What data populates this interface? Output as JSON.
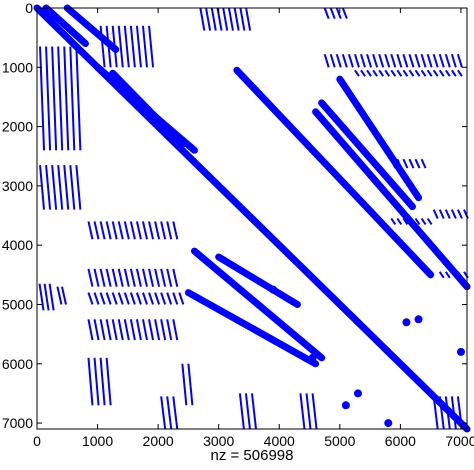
{
  "chart_data": {
    "type": "scatter",
    "subtype": "sparsity-pattern",
    "title": "",
    "xlabel": "nz = 506998",
    "ylabel": "",
    "xlim": [
      0,
      7100
    ],
    "ylim": [
      0,
      7100
    ],
    "y_axis_reversed": true,
    "x_ticks": [
      0,
      1000,
      2000,
      3000,
      4000,
      5000,
      6000,
      7000
    ],
    "y_ticks": [
      0,
      1000,
      2000,
      3000,
      4000,
      5000,
      6000,
      7000
    ],
    "x_tick_labels": [
      "0",
      "1000",
      "2000",
      "3000",
      "4000",
      "5000",
      "6000",
      "7000"
    ],
    "y_tick_labels": [
      "0",
      "1000",
      "2000",
      "3000",
      "4000",
      "5000",
      "6000",
      "7000"
    ],
    "marker_color": "#0000ff",
    "grid": false,
    "nnz": 506998,
    "segments": [
      {
        "x0": 0,
        "y0": 0,
        "x1": 7100,
        "y1": 7100
      },
      {
        "x0": 150,
        "y0": 0,
        "x1": 800,
        "y1": 600
      },
      {
        "x0": 500,
        "y0": 0,
        "x1": 1300,
        "y1": 700
      },
      {
        "x0": 1000,
        "y0": 1000,
        "x1": 2600,
        "y1": 2400
      },
      {
        "x0": 1250,
        "y0": 1100,
        "x1": 2400,
        "y1": 2300
      },
      {
        "x0": 3300,
        "y0": 1050,
        "x1": 6500,
        "y1": 4500
      },
      {
        "x0": 4600,
        "y0": 1750,
        "x1": 7100,
        "y1": 4700
      },
      {
        "x0": 2600,
        "y0": 4100,
        "x1": 4700,
        "y1": 5900
      },
      {
        "x0": 2500,
        "y0": 4800,
        "x1": 4600,
        "y1": 6000
      },
      {
        "x0": 3000,
        "y0": 4200,
        "x1": 4300,
        "y1": 5000
      },
      {
        "x0": 4700,
        "y0": 1600,
        "x1": 6200,
        "y1": 3350
      },
      {
        "x0": 5000,
        "y0": 1200,
        "x1": 6300,
        "y1": 3200
      }
    ],
    "bands": [
      {
        "x0": 2650,
        "y0": 0,
        "x1": 3500,
        "y1": 380
      },
      {
        "x0": 4700,
        "y0": 0,
        "x1": 5100,
        "y1": 180
      },
      {
        "x0": 4700,
        "y0": 780,
        "x1": 7000,
        "y1": 1000
      },
      {
        "x0": 5200,
        "y0": 1050,
        "x1": 7000,
        "y1": 1150
      },
      {
        "x0": 5800,
        "y0": 2550,
        "x1": 6400,
        "y1": 2700
      },
      {
        "x0": 5800,
        "y0": 3550,
        "x1": 6500,
        "y1": 3650
      },
      {
        "x0": 6500,
        "y0": 3400,
        "x1": 7100,
        "y1": 3550
      },
      {
        "x0": 6600,
        "y0": 4450,
        "x1": 7100,
        "y1": 4550
      },
      {
        "x0": 800,
        "y0": 3600,
        "x1": 2300,
        "y1": 3900
      },
      {
        "x0": 800,
        "y0": 4400,
        "x1": 2300,
        "y1": 4700
      },
      {
        "x0": 800,
        "y0": 4800,
        "x1": 2400,
        "y1": 5000
      },
      {
        "x0": 800,
        "y0": 5250,
        "x1": 2300,
        "y1": 5600
      },
      {
        "x0": 0,
        "y0": 2650,
        "x1": 700,
        "y1": 3400
      },
      {
        "x0": 0,
        "y0": 4650,
        "x1": 250,
        "y1": 5100
      },
      {
        "x0": 300,
        "y0": 4700,
        "x1": 450,
        "y1": 5000
      },
      {
        "x0": 800,
        "y0": 5900,
        "x1": 1200,
        "y1": 6700
      },
      {
        "x0": 0,
        "y0": 650,
        "x1": 700,
        "y1": 2400
      },
      {
        "x0": 1000,
        "y0": 300,
        "x1": 1900,
        "y1": 1000
      },
      {
        "x0": 2350,
        "y0": 6000,
        "x1": 2550,
        "y1": 6700
      },
      {
        "x0": 2000,
        "y0": 6550,
        "x1": 2300,
        "y1": 7100
      },
      {
        "x0": 3300,
        "y0": 6500,
        "x1": 3600,
        "y1": 7100
      },
      {
        "x0": 4300,
        "y0": 6500,
        "x1": 4600,
        "y1": 7100
      },
      {
        "x0": 6500,
        "y0": 6550,
        "x1": 7000,
        "y1": 7100
      }
    ],
    "dots": [
      {
        "x": 6300,
        "y": 5250
      },
      {
        "x": 6100,
        "y": 5300
      },
      {
        "x": 7000,
        "y": 5800
      },
      {
        "x": 5300,
        "y": 6500
      },
      {
        "x": 5800,
        "y": 7000
      },
      {
        "x": 5100,
        "y": 6700
      },
      {
        "x": 4550,
        "y": 5900
      },
      {
        "x": 3900,
        "y": 4750
      }
    ]
  }
}
